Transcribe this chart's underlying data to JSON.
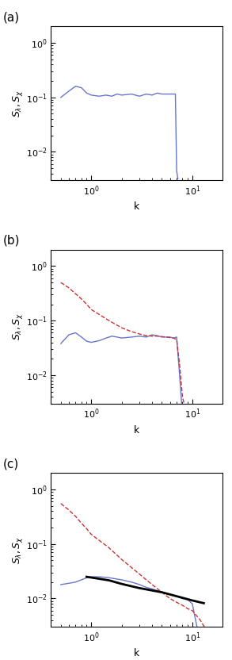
{
  "panels": [
    "(a)",
    "(b)",
    "(c)"
  ],
  "xlim": [
    0.4,
    20
  ],
  "ylim": [
    0.003,
    2
  ],
  "xlabel": "k",
  "blue_color": "#6677cc",
  "red_color": "#cc3333",
  "black_color": "#000000",
  "panel_a": {
    "blue_k": [
      0.5,
      0.6,
      0.7,
      0.8,
      0.9,
      1.0,
      1.2,
      1.4,
      1.6,
      1.8,
      2.0,
      2.5,
      3.0,
      3.5,
      4.0,
      4.5,
      5.0,
      5.5,
      6.0,
      6.2,
      6.5,
      6.8,
      7.0,
      7.2
    ],
    "blue_v": [
      0.1,
      0.13,
      0.16,
      0.15,
      0.12,
      0.11,
      0.105,
      0.11,
      0.105,
      0.115,
      0.11,
      0.115,
      0.105,
      0.115,
      0.11,
      0.12,
      0.115,
      0.115,
      0.115,
      0.115,
      0.115,
      0.115,
      0.0045,
      0.0032
    ]
  },
  "panel_b": {
    "blue_k": [
      0.5,
      0.6,
      0.7,
      0.8,
      0.9,
      1.0,
      1.2,
      1.4,
      1.6,
      1.8,
      2.0,
      2.5,
      3.0,
      3.5,
      4.0,
      4.5,
      5.0,
      5.5,
      6.0,
      6.5,
      7.0,
      7.5,
      7.8,
      8.0
    ],
    "blue_v": [
      0.038,
      0.055,
      0.06,
      0.05,
      0.042,
      0.04,
      0.043,
      0.048,
      0.052,
      0.05,
      0.048,
      0.05,
      0.052,
      0.05,
      0.055,
      0.053,
      0.05,
      0.05,
      0.05,
      0.048,
      0.05,
      0.0095,
      0.0035,
      0.002
    ],
    "red_k": [
      0.5,
      0.6,
      0.7,
      0.8,
      0.9,
      1.0,
      1.5,
      2.0,
      2.5,
      3.0,
      3.5,
      4.0,
      4.5,
      5.0,
      5.5,
      6.0,
      6.5,
      7.0,
      7.5,
      8.0,
      8.5,
      9.0,
      10.0
    ],
    "red_v": [
      0.5,
      0.4,
      0.31,
      0.25,
      0.2,
      0.16,
      0.1,
      0.074,
      0.063,
      0.057,
      0.053,
      0.052,
      0.052,
      0.051,
      0.05,
      0.049,
      0.048,
      0.045,
      0.015,
      0.004,
      0.0025,
      0.0014,
      0.0008
    ]
  },
  "panel_c": {
    "blue_k": [
      0.5,
      0.6,
      0.7,
      0.8,
      0.9,
      1.0,
      1.2,
      1.5,
      2.0,
      2.5,
      3.0,
      3.5,
      4.0,
      5.0,
      6.0,
      7.0,
      8.0,
      9.0,
      10.0,
      12.0,
      14.0,
      15.0,
      16.0
    ],
    "blue_v": [
      0.018,
      0.019,
      0.02,
      0.022,
      0.024,
      0.025,
      0.025,
      0.024,
      0.022,
      0.02,
      0.018,
      0.016,
      0.015,
      0.013,
      0.012,
      0.011,
      0.01,
      0.0095,
      0.008,
      0.0015,
      0.00035,
      0.00025,
      0.00018
    ],
    "red_k": [
      0.5,
      0.6,
      0.7,
      0.8,
      0.9,
      1.0,
      1.5,
      2.0,
      2.5,
      3.0,
      3.5,
      4.0,
      5.0,
      6.0,
      7.0,
      8.0,
      9.0,
      10.0,
      12.0,
      14.0,
      15.0,
      16.0
    ],
    "red_v": [
      0.55,
      0.42,
      0.32,
      0.24,
      0.19,
      0.15,
      0.085,
      0.052,
      0.037,
      0.028,
      0.022,
      0.018,
      0.013,
      0.01,
      0.0085,
      0.0075,
      0.0065,
      0.006,
      0.004,
      0.0025,
      0.0008,
      0.0004
    ],
    "black_k": [
      0.9,
      1.5,
      2.0,
      3.0,
      5.0,
      7.0,
      10.0,
      13.0
    ],
    "black_v": [
      0.025,
      0.0215,
      0.0185,
      0.0155,
      0.013,
      0.011,
      0.0092,
      0.0082
    ]
  }
}
